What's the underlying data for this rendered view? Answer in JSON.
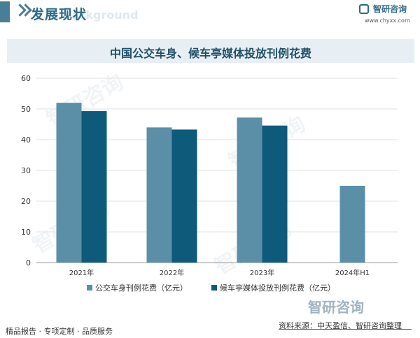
{
  "header": {
    "title": "发展现状",
    "ghost_text": "nt background"
  },
  "brand": {
    "name": "智研咨询",
    "url": "www.chyxx.com",
    "logo_icon": "zhiyan-logo-icon"
  },
  "watermark": {
    "text": "智研咨询"
  },
  "chart_data": {
    "type": "bar",
    "title": "中国公交车身、候车亭媒体投放刊例花费",
    "categories": [
      "2021年",
      "2022年",
      "2023年",
      "2024年H1"
    ],
    "series": [
      {
        "name": "公交车身刊例花费（亿元）",
        "values": [
          52,
          44,
          47.2,
          25
        ],
        "color": "#5b8fa8"
      },
      {
        "name": "候车亭媒体投放刊例花费（亿元）",
        "values": [
          49.3,
          43.3,
          44.6,
          null
        ],
        "color": "#0e5a7a"
      }
    ],
    "y_ticks": [
      0,
      10,
      20,
      30,
      40,
      50,
      60
    ],
    "ylim": [
      0,
      60
    ],
    "grid": true,
    "legend_position": "bottom"
  },
  "footer": {
    "left": "精品报告 · 专项定制 · 品质服务",
    "source": "资料来源：中天盈信、智研咨询整理"
  }
}
